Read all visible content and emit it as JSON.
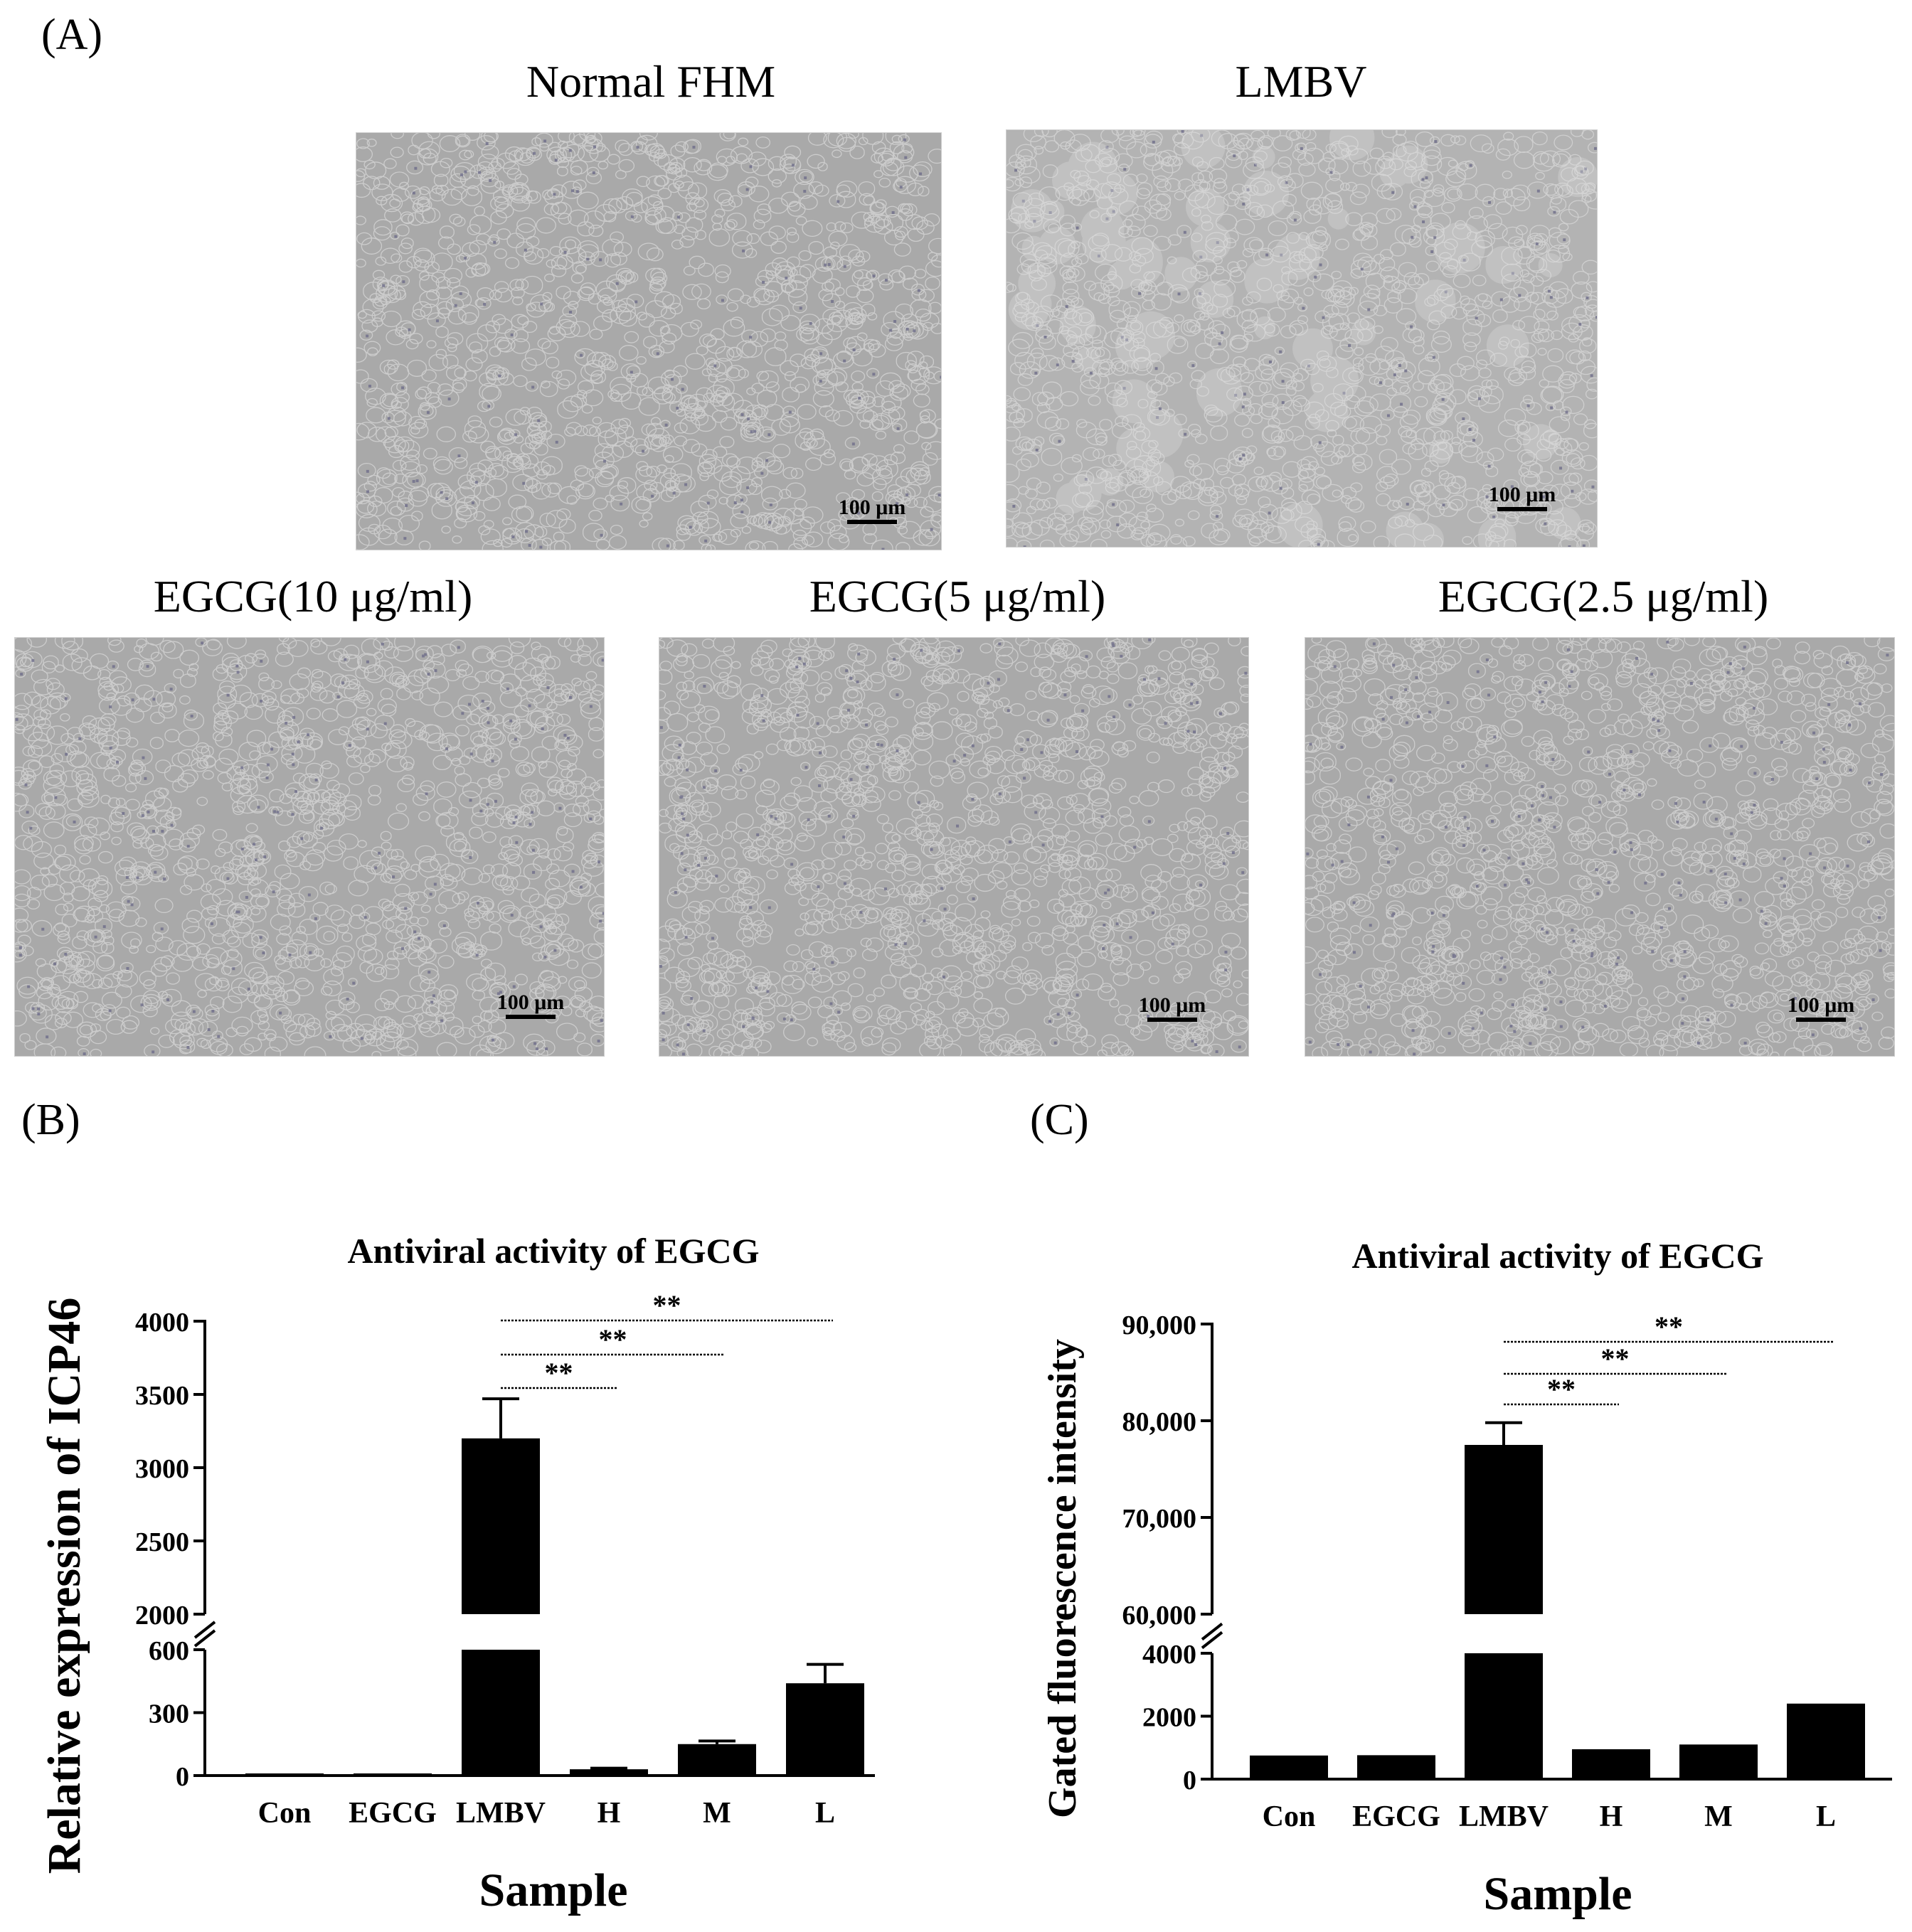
{
  "panels": {
    "A": "(A)",
    "B": "(B)",
    "C": "(C)"
  },
  "micrographs": [
    {
      "title": "Normal FHM",
      "scale": "100 μm"
    },
    {
      "title": "LMBV",
      "scale": "100 μm"
    },
    {
      "title": "EGCG(10 μg/ml)",
      "scale": "100 μm"
    },
    {
      "title": "EGCG(5 μg/ml)",
      "scale": "100 μm"
    },
    {
      "title": "EGCG(2.5 μg/ml)",
      "scale": "100 μm"
    }
  ],
  "colors": {
    "bar": "#000000",
    "micro_bg": "#a9a9a9",
    "micro_bg_lmbv": "#b3b3b3",
    "cell_edge": "#d8d8d8",
    "nucleus": "#6f6e8a"
  },
  "chart_data": [
    {
      "type": "bar",
      "title": "Antiviral activity of EGCG",
      "xlabel": "Sample",
      "ylabel": "Relative expression of ICP46",
      "categories": [
        "Con",
        "EGCG",
        "LMBV",
        "H",
        "M",
        "L"
      ],
      "values": [
        1,
        1,
        3200,
        30,
        150,
        440
      ],
      "errors": [
        0,
        0,
        270,
        5,
        15,
        90
      ],
      "broken_axis": {
        "lower": {
          "range": [
            0,
            600
          ],
          "ticks": [
            "0",
            "300",
            "600"
          ]
        },
        "upper": {
          "range": [
            2000,
            4000
          ],
          "ticks": [
            "2000",
            "2500",
            "3000",
            "3500",
            "4000"
          ]
        }
      },
      "significance": [
        {
          "from": "LMBV",
          "to": "H",
          "label": "**"
        },
        {
          "from": "LMBV",
          "to": "M",
          "label": "**"
        },
        {
          "from": "LMBV",
          "to": "L",
          "label": "**"
        }
      ]
    },
    {
      "type": "bar",
      "title": "Antiviral activity of EGCG",
      "xlabel": "Sample",
      "ylabel": "Gated fluorescence intensity",
      "categories": [
        "Con",
        "EGCG",
        "LMBV",
        "H",
        "M",
        "L"
      ],
      "values": [
        750,
        760,
        77500,
        950,
        1100,
        2400
      ],
      "errors": [
        0,
        0,
        2300,
        0,
        0,
        0
      ],
      "broken_axis": {
        "lower": {
          "range": [
            0,
            4000
          ],
          "ticks": [
            "0",
            "2000",
            "4000"
          ]
        },
        "upper": {
          "range": [
            60000,
            90000
          ],
          "ticks": [
            "60,000",
            "70,000",
            "80,000",
            "90,000"
          ]
        }
      },
      "significance": [
        {
          "from": "LMBV",
          "to": "H",
          "label": "**"
        },
        {
          "from": "LMBV",
          "to": "M",
          "label": "**"
        },
        {
          "from": "LMBV",
          "to": "L",
          "label": "**"
        }
      ]
    }
  ]
}
